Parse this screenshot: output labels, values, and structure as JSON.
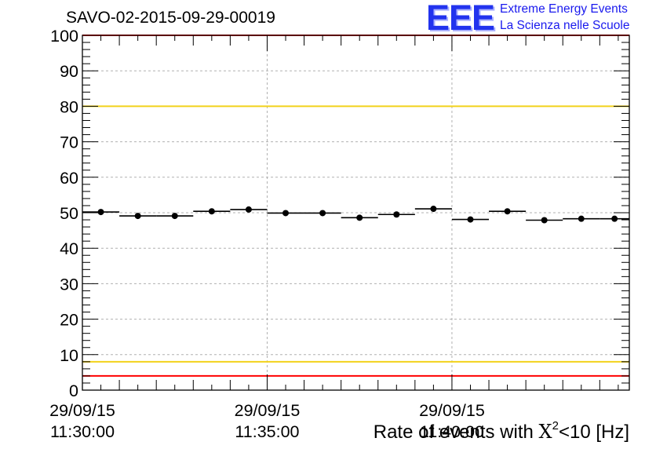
{
  "logo": {
    "letters": "EEE",
    "line1": "Extreme Energy Events",
    "line2": "La Scienza nelle Scuole"
  },
  "chart_data": {
    "type": "scatter",
    "title": "SAVO-02-2015-09-29-00019",
    "xlabel": {
      "prefix": "Rate of events with ",
      "chi": "X",
      "sup": "2",
      "suffix": "<10 [Hz]"
    },
    "ylabel": "",
    "ylim": [
      0,
      100
    ],
    "yticks": [
      0,
      10,
      20,
      30,
      40,
      50,
      60,
      70,
      80,
      90,
      100
    ],
    "xlim_minutes": [
      0,
      14.8
    ],
    "xticks": [
      {
        "minute": 0,
        "date": "29/09/15",
        "time": "11:30:00"
      },
      {
        "minute": 5,
        "date": "29/09/15",
        "time": "11:35:00"
      },
      {
        "minute": 10,
        "date": "29/09/15",
        "time": "11:40:00"
      }
    ],
    "grid": true,
    "series": [
      {
        "name": "rate",
        "bin_width_minutes": 1,
        "x": [
          0.5,
          1.5,
          2.5,
          3.5,
          4.5,
          5.5,
          6.5,
          7.5,
          8.5,
          9.5,
          10.5,
          11.5,
          12.5,
          13.5,
          14.4
        ],
        "y": [
          50.2,
          49.1,
          49.1,
          50.4,
          50.9,
          49.9,
          49.9,
          48.6,
          49.5,
          51.1,
          48.1,
          50.4,
          47.9,
          48.3,
          48.3
        ],
        "xerr": [
          0.5,
          0.5,
          0.5,
          0.5,
          0.5,
          0.5,
          0.5,
          0.5,
          0.5,
          0.5,
          0.5,
          0.5,
          0.5,
          0.5,
          0.4
        ]
      }
    ],
    "reference_lines": [
      {
        "y": 80,
        "color": "#f2d21b"
      },
      {
        "y": 8,
        "color": "#f2d21b"
      },
      {
        "y": 4,
        "color": "#ff0000"
      },
      {
        "y": 100,
        "color": "#ff0000"
      }
    ]
  }
}
